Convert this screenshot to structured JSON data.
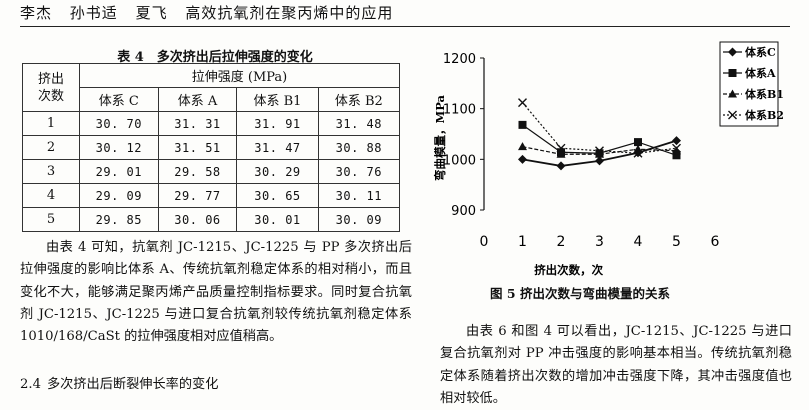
{
  "header": {
    "authors": [
      "李杰",
      "孙书适",
      "夏飞"
    ],
    "title": "高效抗氧剂在聚丙烯中的应用"
  },
  "table4": {
    "caption": "表 4　多次挤出后拉伸强度的变化",
    "row_header": "挤出次数",
    "group_header": "拉伸强度 (MPa)",
    "columns": [
      "体系 C",
      "体系 A",
      "体系 B1",
      "体系 B2"
    ],
    "rows": [
      {
        "n": "1",
        "values": [
          "30. 70",
          "31. 31",
          "31. 91",
          "31. 48"
        ]
      },
      {
        "n": "2",
        "values": [
          "30. 12",
          "31. 51",
          "31. 47",
          "30. 88"
        ]
      },
      {
        "n": "3",
        "values": [
          "29. 01",
          "29. 58",
          "30. 29",
          "30. 76"
        ]
      },
      {
        "n": "4",
        "values": [
          "29. 09",
          "29. 77",
          "30. 65",
          "30. 11"
        ]
      },
      {
        "n": "5",
        "values": [
          "29. 85",
          "30. 06",
          "30. 01",
          "30. 09"
        ]
      }
    ]
  },
  "left_paragraph": "由表 4 可知，抗氧剂 JC-1215、JC-1225 与 PP 多次挤出后拉伸强度的影响比体系 A、传统抗氧剂稳定体系的相对稍小，而且变化不大，能够满足聚丙烯产品质量控制指标要求。同时复合抗氧剂 JC-1215、JC-1225 与进口复合抗氧剂较传统抗氧剂稳定体系 1010/168/CaSt 的拉伸强度相对应值稍高。",
  "section": {
    "number": "2.4",
    "title": "多次挤出后断裂伸长率的变化"
  },
  "figure": {
    "caption": "图 5 挤出次数与弯曲模量的关系"
  },
  "right_paragraph": "由表 6 和图 4 可以看出，JC-1215、JC-1225 与进口复合抗氧剂对 PP 冲击强度的影响基本相当。传统抗氧剂稳定体系随着挤出次数的增加冲击强度下降，其冲击强度值也相对较低。",
  "chart_data": {
    "type": "line",
    "xlabel": "挤出次数，次",
    "ylabel": "弯曲模量，MPa",
    "xlim": [
      0,
      6
    ],
    "ylim": [
      900,
      1200
    ],
    "xticks": [
      0,
      1,
      2,
      3,
      4,
      5,
      6
    ],
    "yticks": [
      900,
      1000,
      1100,
      1200
    ],
    "legend_position": "top-right",
    "x": [
      1,
      2,
      3,
      4,
      5
    ],
    "series": [
      {
        "name": "体系C",
        "marker": "diamond",
        "values": [
          1000,
          987,
          997,
          1013,
          1037
        ]
      },
      {
        "name": "体系A",
        "marker": "square",
        "values": [
          1068,
          1014,
          1012,
          1034,
          1008
        ]
      },
      {
        "name": "体系B1",
        "marker": "triangle",
        "values": [
          1025,
          1010,
          1010,
          1020,
          1017
        ]
      },
      {
        "name": "体系B2",
        "marker": "cross",
        "values": [
          1112,
          1022,
          1017,
          1012,
          1022
        ]
      }
    ]
  }
}
